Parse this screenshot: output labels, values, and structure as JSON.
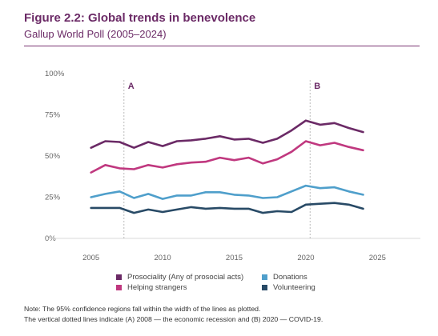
{
  "header": {
    "title": "Figure 2.2: Global trends in benevolence",
    "subtitle": "Gallup World Poll (2005–2024)"
  },
  "chart_data": {
    "type": "line",
    "title": "Figure 2.2: Global trends in benevolence",
    "subtitle": "Gallup World Poll (2005–2024)",
    "xlabel": "",
    "ylabel": "",
    "xlim": [
      2002,
      2028
    ],
    "ylim": [
      0,
      100
    ],
    "x_ticks": [
      2005,
      2010,
      2015,
      2020,
      2025
    ],
    "x_tick_labels": [
      "2005",
      "2010",
      "2015",
      "2020",
      "2025"
    ],
    "y_ticks": [
      0,
      25,
      50,
      75,
      100
    ],
    "y_tick_labels": [
      "0%",
      "25%",
      "50%",
      "75%",
      "100%"
    ],
    "grid": false,
    "legend_position": "bottom",
    "annotations": [
      {
        "label": "A",
        "x": 2007.3
      },
      {
        "label": "B",
        "x": 2020.3
      }
    ],
    "x": [
      2005,
      2006,
      2007,
      2008,
      2009,
      2010,
      2011,
      2012,
      2013,
      2014,
      2015,
      2016,
      2017,
      2018,
      2019,
      2020,
      2021,
      2022,
      2023,
      2024
    ],
    "series": [
      {
        "name": "Prosociality (Any of prosocial acts)",
        "color": "#6b2a66",
        "values": [
          55,
          59,
          58.5,
          55,
          58.5,
          56,
          59,
          59.5,
          60.5,
          62,
          60,
          60.5,
          58,
          60.5,
          65.5,
          71.5,
          69,
          70,
          67,
          64.5
        ]
      },
      {
        "name": "Helping strangers",
        "color": "#c0387f",
        "values": [
          40,
          44.5,
          42.5,
          42,
          44.5,
          43,
          45,
          46,
          46.5,
          49,
          47.5,
          49,
          45.5,
          48,
          52.5,
          59,
          56.5,
          58,
          55.5,
          53.5
        ]
      },
      {
        "name": "Donations",
        "color": "#4f9fcb",
        "values": [
          25,
          27,
          28.5,
          24.5,
          27,
          24,
          26,
          26,
          28,
          28,
          26.5,
          26,
          24.5,
          25,
          28.5,
          32,
          30.5,
          31,
          28.5,
          26.5
        ]
      },
      {
        "name": "Volunteering",
        "color": "#284a66",
        "values": [
          18.5,
          18.5,
          18.5,
          15.5,
          17.5,
          16,
          17.5,
          19,
          18,
          18.5,
          18,
          18,
          15.5,
          16.5,
          16,
          20.5,
          21,
          21.5,
          20.5,
          18
        ]
      }
    ]
  },
  "legend": {
    "items": [
      {
        "label": "Prosociality (Any of prosocial acts)",
        "color": "#6b2a66"
      },
      {
        "label": "Donations",
        "color": "#4f9fcb"
      },
      {
        "label": "Helping strangers",
        "color": "#c0387f"
      },
      {
        "label": "Volunteering",
        "color": "#284a66"
      }
    ]
  },
  "note": {
    "line1": "Note: The 95% confidence regions fall within the width of the lines as plotted.",
    "line2": "The vertical dotted lines indicate (A) 2008 — the economic recession and (B) 2020 — COVID-19."
  }
}
